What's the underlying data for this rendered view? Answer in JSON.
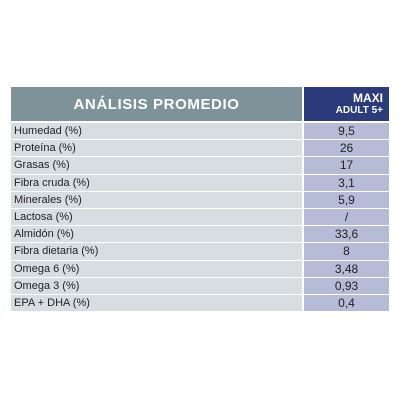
{
  "header": {
    "title": "ANÁLISIS PROMEDIO",
    "product_line1": "MAXI",
    "product_line2": "ADULT 5+"
  },
  "rows": [
    {
      "label": "Humedad (%)",
      "value": "9,5"
    },
    {
      "label": "Proteína (%)",
      "value": "26"
    },
    {
      "label": "Grasas (%)",
      "value": "17"
    },
    {
      "label": "Fibra cruda (%)",
      "value": "3,1"
    },
    {
      "label": "Minerales (%)",
      "value": "5,9"
    },
    {
      "label": "Lactosa (%)",
      "value": "/"
    },
    {
      "label": "Almidón (%)",
      "value": "33,6"
    },
    {
      "label": "Fibra dietaria (%)",
      "value": "8"
    },
    {
      "label": "Omega 6 (%)",
      "value": "3,48"
    },
    {
      "label": "Omega 3 (%)",
      "value": "0,93"
    },
    {
      "label": "EPA + DHA (%)",
      "value": "0,4"
    }
  ],
  "colors": {
    "header_left_bg": "#7d9399",
    "header_right_bg": "#2b3b7c",
    "label_cell_bg": "#d8dde1",
    "value_cell_bg": "#b6bcd8"
  }
}
